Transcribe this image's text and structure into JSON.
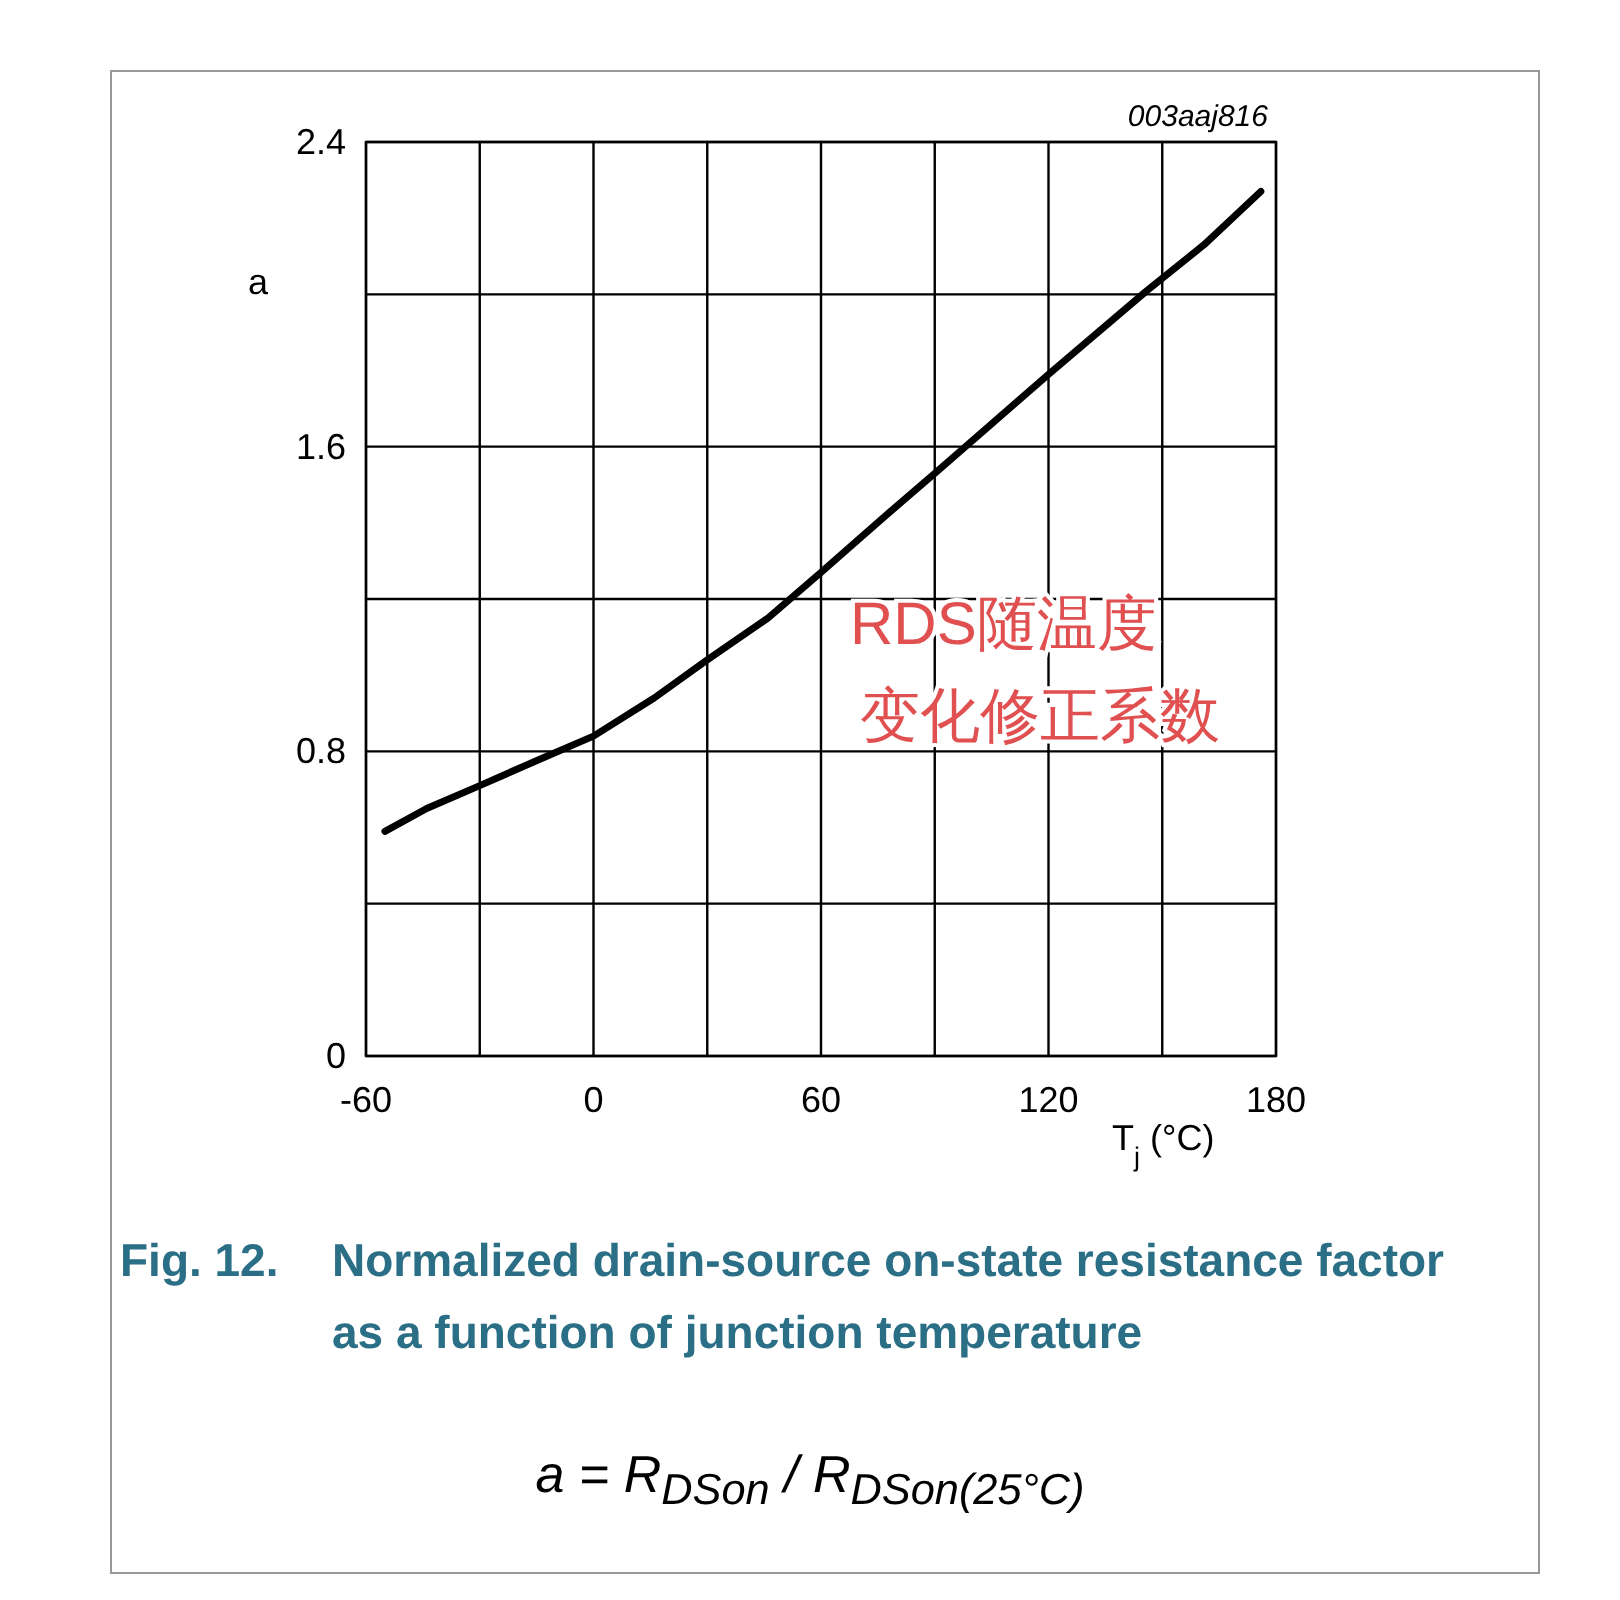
{
  "chart_data": {
    "type": "line",
    "title": "Fig. 12.  Normalized drain-source on-state resistance factor as a function of junction temperature",
    "xlabel": "T$_{j}$ (°C)",
    "ylabel": "a",
    "xlim": [
      -60,
      180
    ],
    "xticks": [
      -60,
      {
        "value": -30,
        "label": null
      },
      0,
      {
        "value": 30,
        "label": null
      },
      60,
      {
        "value": 90,
        "label": null
      },
      120,
      {
        "value": 150,
        "label": null
      },
      180
    ],
    "ylim": [
      0,
      2.4
    ],
    "yticks": [
      0,
      {
        "value": 0.4,
        "label": null
      },
      0.8,
      {
        "value": 1.2,
        "label": null
      },
      1.6,
      {
        "value": 2.0,
        "label": null
      },
      2.4
    ],
    "grid": true,
    "annotations": [
      "003aaj816",
      "RDS随温度变化修正系数",
      "a = R$_{DSon}$ / R$_{DSon(25°C)}$"
    ],
    "series": [
      {
        "color": "#000000",
        "x": [
          -55,
          -44,
          -30,
          -14,
          0,
          16,
          30,
          46,
          60,
          76,
          90,
          105,
          120,
          146,
          161,
          176
        ],
        "values": [
          0.59,
          0.65,
          0.71,
          0.78,
          0.84,
          0.94,
          1.04,
          1.15,
          1.27,
          1.41,
          1.53,
          1.66,
          1.79,
          2.01,
          2.13,
          2.27
        ]
      }
    ]
  }
}
